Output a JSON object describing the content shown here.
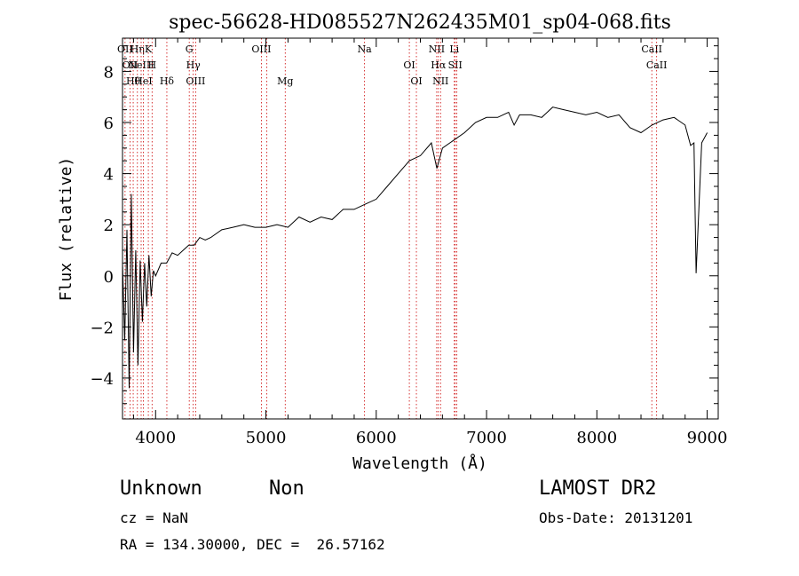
{
  "chart_data": {
    "type": "line",
    "title": "spec-56628-HD085527N262435M01_sp04-068.fits",
    "xlabel": "Wavelength (Å)",
    "ylabel": "Flux (relative)",
    "xlim": [
      3700,
      9100
    ],
    "ylim": [
      -5.6,
      9.3
    ],
    "xticks": [
      4000,
      5000,
      6000,
      7000,
      8000,
      9000
    ],
    "yticks": [
      -4,
      -2,
      0,
      2,
      4,
      6,
      8
    ],
    "grid": false,
    "series": [
      {
        "x": [
          3700,
          3720,
          3740,
          3760,
          3780,
          3800,
          3820,
          3840,
          3860,
          3880,
          3900,
          3920,
          3940,
          3960,
          3980,
          4000,
          4050,
          4100,
          4150,
          4200,
          4250,
          4300,
          4350,
          4400,
          4450,
          4500,
          4600,
          4700,
          4800,
          4900,
          5000,
          5100,
          5200,
          5300,
          5400,
          5500,
          5600,
          5700,
          5800,
          5900,
          6000,
          6100,
          6200,
          6300,
          6400,
          6500,
          6550,
          6600,
          6700,
          6800,
          6900,
          7000,
          7100,
          7200,
          7250,
          7300,
          7400,
          7500,
          7600,
          7700,
          7800,
          7900,
          8000,
          8100,
          8200,
          8300,
          8400,
          8500,
          8600,
          8700,
          8800,
          8850,
          8880,
          8900,
          8950,
          9000
        ],
        "y": [
          0.5,
          -2.5,
          1.8,
          -4.4,
          3.2,
          -3.0,
          1.0,
          -3.5,
          0.6,
          -1.8,
          0.5,
          -1.2,
          0.8,
          -0.8,
          0.2,
          0.0,
          0.5,
          0.5,
          0.9,
          0.8,
          1.0,
          1.2,
          1.2,
          1.5,
          1.4,
          1.5,
          1.8,
          1.9,
          2.0,
          1.9,
          1.9,
          2.0,
          1.9,
          2.3,
          2.1,
          2.3,
          2.2,
          2.6,
          2.6,
          2.8,
          3.0,
          3.5,
          4.0,
          4.5,
          4.7,
          5.2,
          4.2,
          5.0,
          5.3,
          5.6,
          6.0,
          6.2,
          6.2,
          6.4,
          5.9,
          6.3,
          6.3,
          6.2,
          6.6,
          6.5,
          6.4,
          6.3,
          6.4,
          6.2,
          6.3,
          5.8,
          5.6,
          5.9,
          6.1,
          6.2,
          5.9,
          5.1,
          5.2,
          0.1,
          5.2,
          5.6
        ]
      }
    ],
    "line_markers": [
      {
        "wl": 3723,
        "labels": [
          "OII"
        ]
      },
      {
        "wl": 3768,
        "labels": [
          "OII"
        ]
      },
      {
        "wl": 3797,
        "labels": [
          "Hθ"
        ]
      },
      {
        "wl": 3835,
        "labels": [
          "Hη"
        ]
      },
      {
        "wl": 3869,
        "labels": [
          "NeIII"
        ]
      },
      {
        "wl": 3889,
        "labels": [
          "HeI"
        ]
      },
      {
        "wl": 3934,
        "labels": [
          "K"
        ]
      },
      {
        "wl": 3968,
        "labels": [
          "H"
        ]
      },
      {
        "wl": 4102,
        "labels": [
          "Hδ"
        ]
      },
      {
        "wl": 4305,
        "labels": [
          "G"
        ]
      },
      {
        "wl": 4341,
        "labels": [
          "Hγ"
        ]
      },
      {
        "wl": 4363,
        "labels": [
          "OIII"
        ]
      },
      {
        "wl": 4959,
        "labels": [
          "OIII"
        ]
      },
      {
        "wl": 5007,
        "labels": []
      },
      {
        "wl": 5175,
        "labels": [
          "Mg"
        ]
      },
      {
        "wl": 5894,
        "labels": [
          "Na"
        ]
      },
      {
        "wl": 6300,
        "labels": [
          "OI"
        ]
      },
      {
        "wl": 6364,
        "labels": [
          "OI"
        ]
      },
      {
        "wl": 6548,
        "labels": [
          "NII"
        ]
      },
      {
        "wl": 6563,
        "labels": [
          "Hα"
        ]
      },
      {
        "wl": 6583,
        "labels": [
          "NII"
        ]
      },
      {
        "wl": 6708,
        "labels": [
          "Li"
        ]
      },
      {
        "wl": 6716,
        "labels": [
          "SII"
        ]
      },
      {
        "wl": 6731,
        "labels": []
      },
      {
        "wl": 8498,
        "labels": [
          "CaII"
        ]
      },
      {
        "wl": 8542,
        "labels": [
          "CaII"
        ]
      }
    ],
    "marker_color": "#cc0000",
    "line_color": "#000000"
  },
  "info": {
    "object_class": "Unknown",
    "object_subclass": "Non",
    "survey": "LAMOST DR2",
    "cz": "cz = NaN",
    "obs_date": "Obs-Date: 20131201",
    "coords": "RA = 134.30000, DEC =  26.57162"
  }
}
